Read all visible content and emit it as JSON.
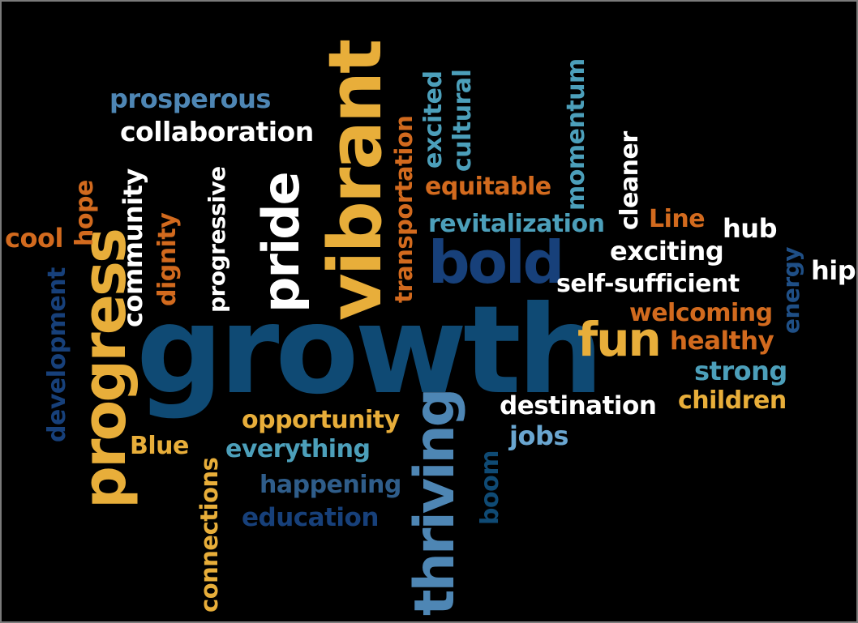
{
  "palette": {
    "background": "#000000",
    "white": "#ffffff",
    "orange": "#d26a1e",
    "gold": "#e8ae3a",
    "teal": "#4c9fba",
    "sky": "#6aa6d0",
    "steel": "#4e86b4",
    "navy": "#1f4f86",
    "deep": "#0f4a74"
  },
  "words": {
    "growth": "growth",
    "vibrant": "vibrant",
    "progress": "progress",
    "thriving": "thriving",
    "pride": "pride",
    "bold": "bold",
    "fun": "fun",
    "prosperous": "prosperous",
    "collaboration": "collaboration",
    "community": "community",
    "progressive": "progressive",
    "dignity": "dignity",
    "hope": "hope",
    "cool": "cool",
    "development": "development",
    "transportation": "transportation",
    "excited": "excited",
    "cultural": "cultural",
    "momentum": "momentum",
    "cleaner": "cleaner",
    "equitable": "equitable",
    "revitalization": "revitalization",
    "line": "Line",
    "hub": "hub",
    "exciting": "exciting",
    "hip": "hip",
    "energy": "energy",
    "self_sufficient": "self-sufficient",
    "welcoming": "welcoming",
    "healthy": "healthy",
    "strong": "strong",
    "children": "children",
    "destination": "destination",
    "jobs": "jobs",
    "opportunity": "opportunity",
    "everything": "everything",
    "happening": "happening",
    "education": "education",
    "blue": "Blue",
    "connections": "connections",
    "boom": "boom"
  }
}
